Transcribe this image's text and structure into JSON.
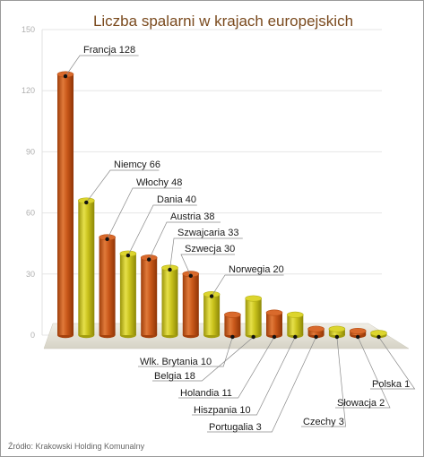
{
  "chart_data": {
    "type": "bar",
    "title": "Liczba spalarni w krajach europejskich",
    "source": "Źródło: Krakowski Holding Komunalny",
    "ylim": [
      0,
      150
    ],
    "yticks": [
      0,
      30,
      60,
      90,
      120,
      150
    ],
    "grid": true,
    "categories": [
      "Francja",
      "Niemcy",
      "Włochy",
      "Dania",
      "Austria",
      "Szwajcaria",
      "Szwecja",
      "Norwegia",
      "Wlk. Brytania",
      "Belgia",
      "Holandia",
      "Hiszpania",
      "Portugalia",
      "Czechy",
      "Słowacja",
      "Polska"
    ],
    "values": [
      128,
      66,
      48,
      40,
      38,
      33,
      30,
      20,
      10,
      18,
      11,
      10,
      3,
      3,
      2,
      1
    ],
    "labels": [
      "Francja 128",
      "Niemcy 66",
      "Włochy 48",
      "Dania 40",
      "Austria 38",
      "Szwajcaria 33",
      "Szwecja 30",
      "Norwegia 20",
      "Wlk. Brytania 10",
      "Belgia 18",
      "Holandia 11",
      "Hiszpania 10",
      "Portugalia 3",
      "Czechy 3",
      "Słowacja 2",
      "Polska 1"
    ],
    "colors": {
      "orange": "#c9581a",
      "orange_dark": "#a5410c",
      "yellow": "#c9c21c",
      "yellow_dark": "#a39d0e",
      "grid": "#e6e6e6",
      "leader": "#8a8a8a"
    }
  }
}
